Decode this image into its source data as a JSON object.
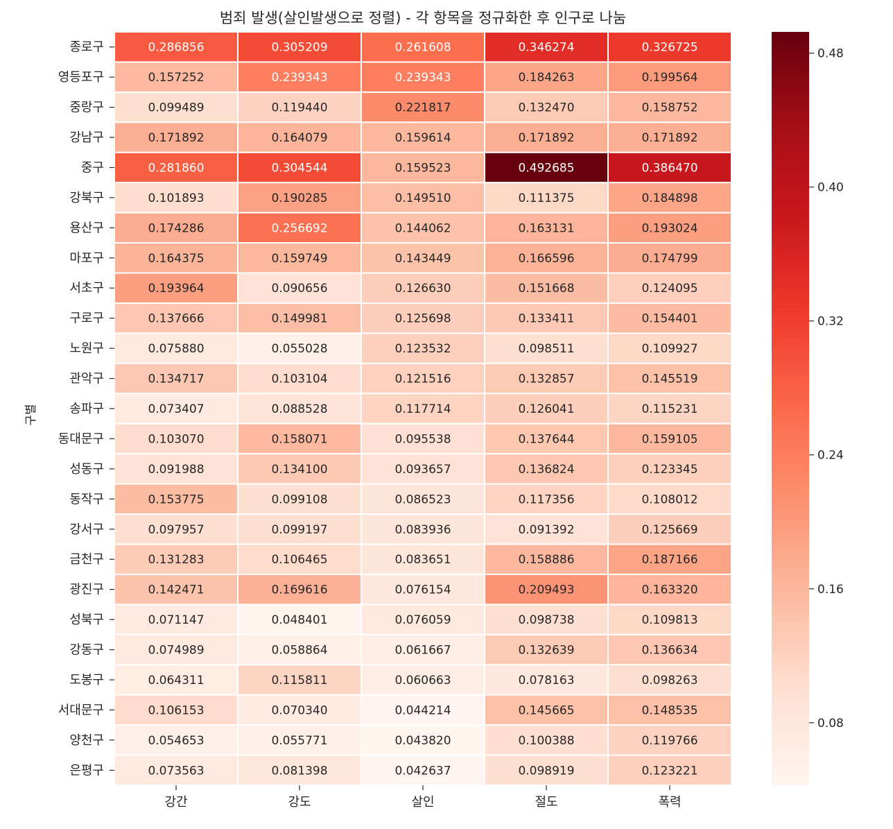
{
  "chart_data": {
    "type": "heatmap",
    "title": "범죄 발생(살인발생으로 정렬) - 각 항목을 정규화한 후 인구로 나눔",
    "xlabel": "",
    "ylabel": "구별",
    "columns": [
      "강간",
      "강도",
      "살인",
      "절도",
      "폭력"
    ],
    "rows": [
      "종로구",
      "영등포구",
      "중랑구",
      "강남구",
      "중구",
      "강북구",
      "용산구",
      "마포구",
      "서초구",
      "구로구",
      "노원구",
      "관악구",
      "송파구",
      "동대문구",
      "성동구",
      "동작구",
      "강서구",
      "금천구",
      "광진구",
      "성북구",
      "강동구",
      "도봉구",
      "서대문구",
      "양천구",
      "은평구"
    ],
    "values": [
      [
        "0.286856",
        "0.305209",
        "0.261608",
        "0.346274",
        "0.326725"
      ],
      [
        "0.157252",
        "0.239343",
        "0.239343",
        "0.184263",
        "0.199564"
      ],
      [
        "0.099489",
        "0.119440",
        "0.221817",
        "0.132470",
        "0.158752"
      ],
      [
        "0.171892",
        "0.164079",
        "0.159614",
        "0.171892",
        "0.171892"
      ],
      [
        "0.281860",
        "0.304544",
        "0.159523",
        "0.492685",
        "0.386470"
      ],
      [
        "0.101893",
        "0.190285",
        "0.149510",
        "0.111375",
        "0.184898"
      ],
      [
        "0.174286",
        "0.256692",
        "0.144062",
        "0.163131",
        "0.193024"
      ],
      [
        "0.164375",
        "0.159749",
        "0.143449",
        "0.166596",
        "0.174799"
      ],
      [
        "0.193964",
        "0.090656",
        "0.126630",
        "0.151668",
        "0.124095"
      ],
      [
        "0.137666",
        "0.149981",
        "0.125698",
        "0.133411",
        "0.154401"
      ],
      [
        "0.075880",
        "0.055028",
        "0.123532",
        "0.098511",
        "0.109927"
      ],
      [
        "0.134717",
        "0.103104",
        "0.121516",
        "0.132857",
        "0.145519"
      ],
      [
        "0.073407",
        "0.088528",
        "0.117714",
        "0.126041",
        "0.115231"
      ],
      [
        "0.103070",
        "0.158071",
        "0.095538",
        "0.137644",
        "0.159105"
      ],
      [
        "0.091988",
        "0.134100",
        "0.093657",
        "0.136824",
        "0.123345"
      ],
      [
        "0.153775",
        "0.099108",
        "0.086523",
        "0.117356",
        "0.108012"
      ],
      [
        "0.097957",
        "0.099197",
        "0.083936",
        "0.091392",
        "0.125669"
      ],
      [
        "0.131283",
        "0.106465",
        "0.083651",
        "0.158886",
        "0.187166"
      ],
      [
        "0.142471",
        "0.169616",
        "0.076154",
        "0.209493",
        "0.163320"
      ],
      [
        "0.071147",
        "0.048401",
        "0.076059",
        "0.098738",
        "0.109813"
      ],
      [
        "0.074989",
        "0.058864",
        "0.061667",
        "0.132639",
        "0.136634"
      ],
      [
        "0.064311",
        "0.115811",
        "0.060663",
        "0.078163",
        "0.098263"
      ],
      [
        "0.106153",
        "0.070340",
        "0.044214",
        "0.145665",
        "0.148535"
      ],
      [
        "0.054653",
        "0.055771",
        "0.043820",
        "0.100388",
        "0.119766"
      ],
      [
        "0.073563",
        "0.081398",
        "0.042637",
        "0.098919",
        "0.123221"
      ]
    ],
    "colormap": "Reds",
    "colorbar": {
      "range": [
        0.042637,
        0.492685
      ],
      "ticks": [
        0.08,
        0.16,
        0.24,
        0.32,
        0.4,
        0.48
      ],
      "tick_labels": [
        "0.08",
        "0.16",
        "0.24",
        "0.32",
        "0.40",
        "0.48"
      ]
    },
    "colors": {
      "low": "#fff5f0",
      "stops": [
        "#fff5f0",
        "#fee0d2",
        "#fcbba1",
        "#fc9272",
        "#fb6a4a",
        "#ef3b2c",
        "#cb181d",
        "#a50f15",
        "#67000d"
      ],
      "text_dark": "#262626",
      "text_light": "#ffffff",
      "grid_line": "#ffffff"
    }
  }
}
